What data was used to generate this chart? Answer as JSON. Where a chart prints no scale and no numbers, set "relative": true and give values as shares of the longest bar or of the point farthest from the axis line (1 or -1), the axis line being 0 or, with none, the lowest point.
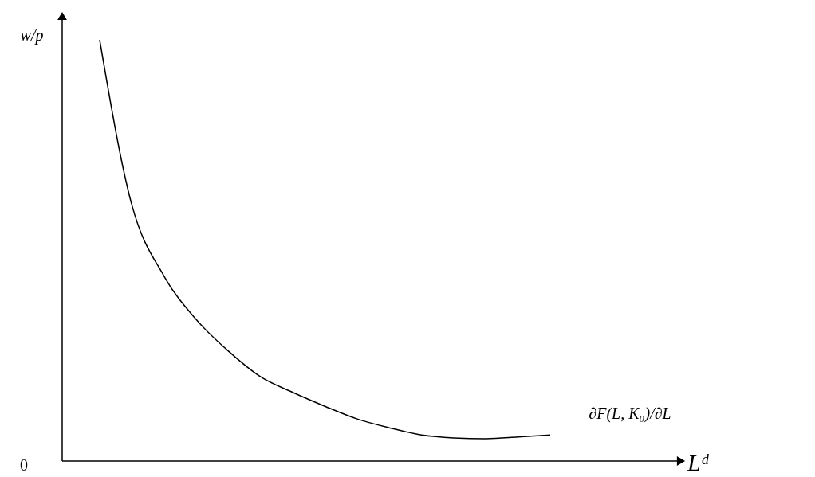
{
  "chart_data": {
    "type": "line",
    "relative": true,
    "ylabel": "w/p",
    "categories": [
      null,
      null,
      null,
      null,
      null,
      null,
      null,
      null,
      null,
      null,
      null,
      null,
      null,
      null,
      null
    ],
    "series": [
      {
        "color": "#000000",
        "values": [
          1,
          0.608,
          0.439,
          0.336,
          0.261,
          0.2,
          0.163,
          0.13,
          0.1,
          0.079,
          0.062,
          0.055,
          0.053,
          0.057,
          0.062
        ]
      }
    ],
    "annotations": [
      "∂F(L, K₀)/∂L",
      "0",
      "Lᵈ"
    ],
    "marker": "none",
    "line_style": "solid"
  }
}
